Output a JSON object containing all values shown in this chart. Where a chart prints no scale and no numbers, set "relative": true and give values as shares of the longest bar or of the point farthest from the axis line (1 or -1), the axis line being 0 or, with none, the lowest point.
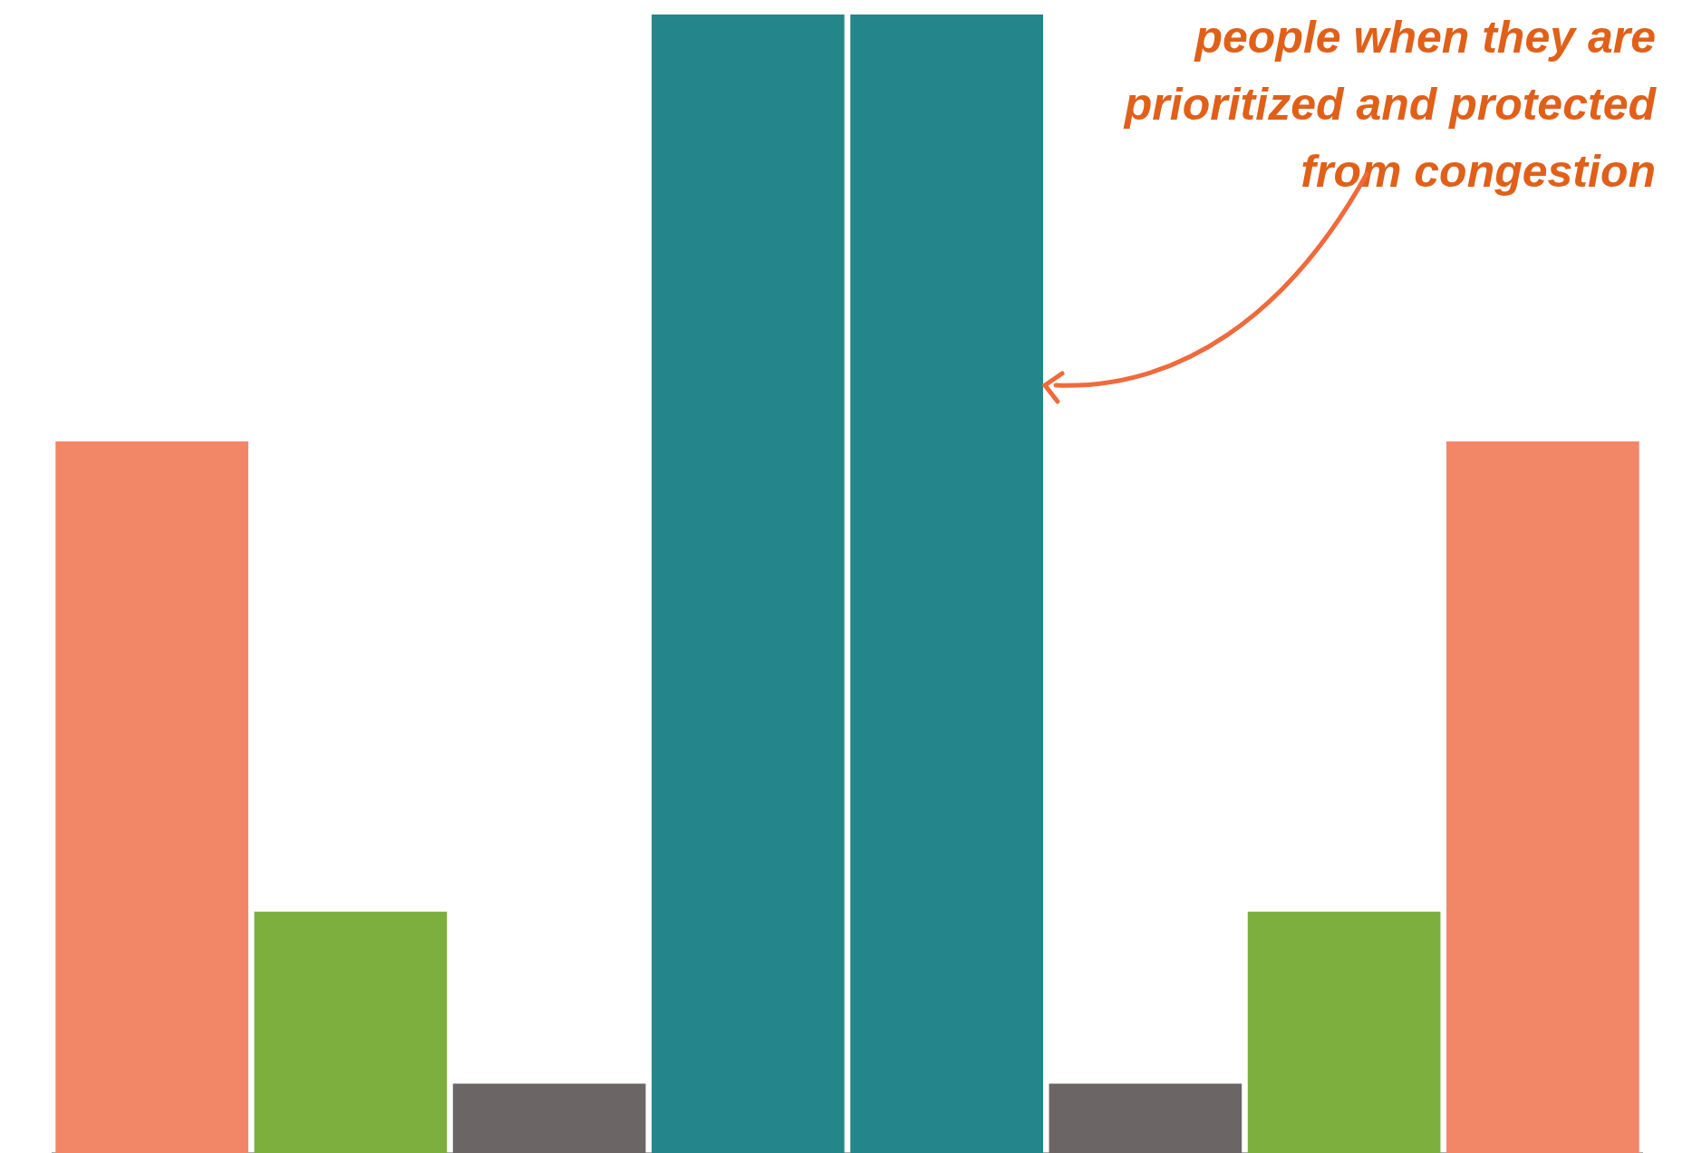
{
  "chart_data": {
    "type": "bar",
    "relative": true,
    "categories": [
      null,
      null,
      null,
      null,
      null,
      null,
      null,
      null
    ],
    "values": [
      0.625,
      0.212,
      0.061,
      1,
      1,
      0.061,
      0.212,
      0.625
    ],
    "colors": [
      "#f28767",
      "#7daf3f",
      "#6b6665",
      "#24868b",
      "#24868b",
      "#6b6665",
      "#7daf3f",
      "#f28767"
    ],
    "annotations": [
      "people when they are prioritized and protected from congestion"
    ]
  }
}
